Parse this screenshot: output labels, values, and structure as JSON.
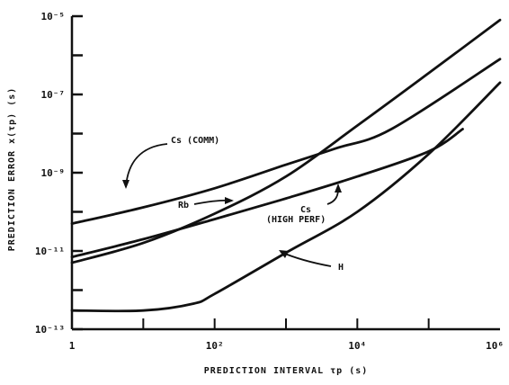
{
  "chart_data": {
    "type": "line",
    "title": "",
    "xlabel": "PREDICTION INTERVAL τp (s)",
    "ylabel": "PREDICTION ERROR x(τp) (s)",
    "xscale": "log",
    "yscale": "log",
    "xlim": [
      1,
      1000000
    ],
    "ylim": [
      1e-13,
      1e-05
    ],
    "grid": false,
    "legend": "none",
    "x_ticks": [
      {
        "value": 1,
        "label": "1"
      },
      {
        "value": 100,
        "label": "10²"
      },
      {
        "value": 10000,
        "label": "10⁴"
      },
      {
        "value": 1000000,
        "label": "10⁶"
      }
    ],
    "y_ticks": [
      {
        "value": 1e-13,
        "label": "10⁻¹³"
      },
      {
        "value": 1e-11,
        "label": "10⁻¹¹"
      },
      {
        "value": 1e-09,
        "label": "10⁻⁹"
      },
      {
        "value": 1e-07,
        "label": "10⁻⁷"
      },
      {
        "value": 1e-05,
        "label": "10⁻⁵"
      }
    ],
    "series": [
      {
        "name": "Cs (COMM)",
        "x": [
          1,
          10,
          100,
          1000,
          5000,
          30000,
          1000000
        ],
        "y": [
          5e-11,
          1.3e-10,
          4e-10,
          1.6e-09,
          4.2e-09,
          1.3e-08,
          8e-07
        ]
      },
      {
        "name": "Rb",
        "x": [
          1,
          10,
          100,
          1000,
          10000,
          100000,
          1000000
        ],
        "y": [
          5e-12,
          1.6e-11,
          9e-11,
          8e-10,
          1.6e-08,
          3.5e-07,
          8e-06
        ]
      },
      {
        "name": "Cs (HIGH PERF)",
        "x": [
          1,
          10,
          100,
          1000,
          10000,
          100000,
          300000
        ],
        "y": [
          7e-12,
          2e-11,
          6.5e-11,
          2.2e-10,
          8e-10,
          3.5e-09,
          1.3e-08
        ]
      },
      {
        "name": "H",
        "x": [
          1,
          10,
          50,
          100,
          1000,
          10000,
          100000,
          1000000
        ],
        "y": [
          3e-13,
          3e-13,
          4.5e-13,
          8e-13,
          9e-12,
          1e-10,
          3e-09,
          2e-07
        ]
      }
    ],
    "annotations": [
      {
        "text": "Cs (COMM)",
        "series": "Cs (COMM)"
      },
      {
        "text": "Rb",
        "series": "Rb"
      },
      {
        "text": "Cs",
        "series": "Cs (HIGH PERF)"
      },
      {
        "text": "(HIGH PERF)",
        "series": "Cs (HIGH PERF)"
      },
      {
        "text": "H",
        "series": "H"
      }
    ],
    "colors": {
      "line": "#111111",
      "background": "#ffffff"
    }
  }
}
